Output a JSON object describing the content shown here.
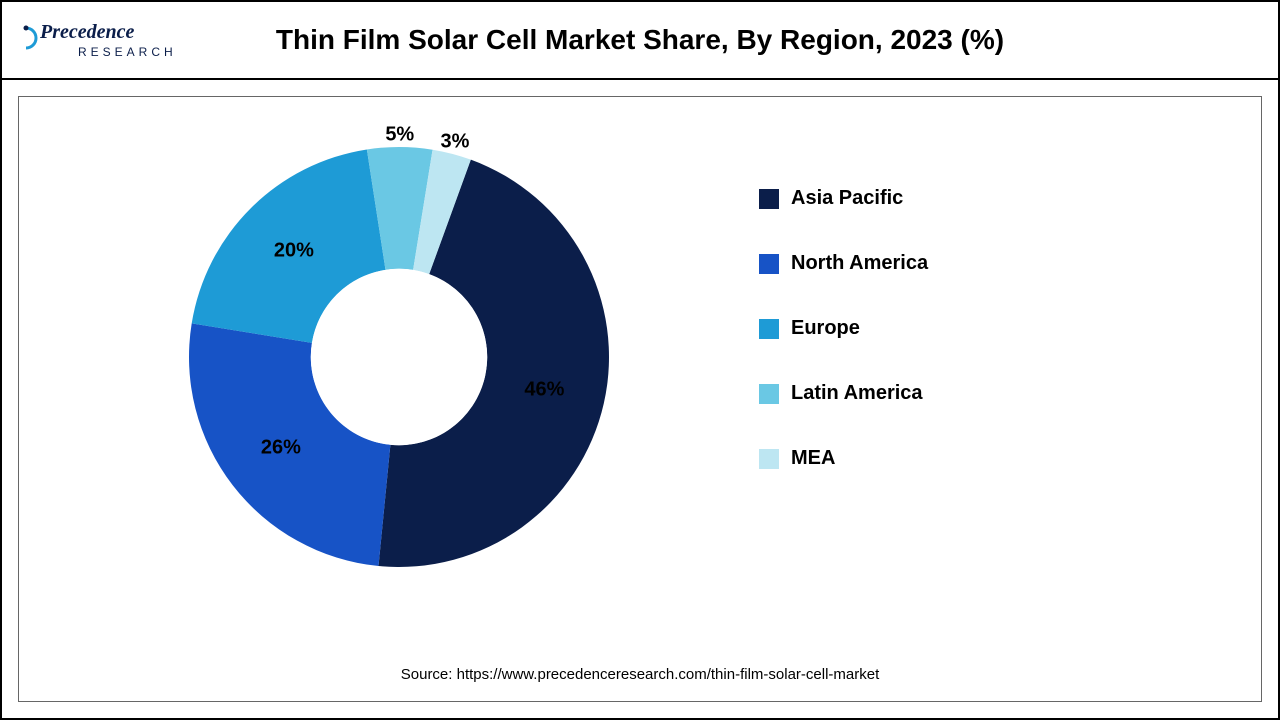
{
  "title": "Thin Film Solar Cell Market Share, By Region, 2023 (%)",
  "logo": {
    "top_text": "Precedence",
    "bottom_text": "RESEARCH",
    "accent_color": "#1e9bd6",
    "text_color": "#0b1e4a"
  },
  "chart": {
    "type": "donut",
    "background_color": "#ffffff",
    "inner_radius_ratio": 0.42,
    "outer_radius": 210,
    "start_angle_deg": 20,
    "direction": "clockwise",
    "label_fontsize": 20,
    "label_fontweight": 700,
    "label_color": "#000000",
    "slices": [
      {
        "name": "Asia Pacific",
        "value": 46,
        "color": "#0b1e4a",
        "label": "46%"
      },
      {
        "name": "North America",
        "value": 26,
        "color": "#1753c6",
        "label": "26%"
      },
      {
        "name": "Europe",
        "value": 20,
        "color": "#1e9bd6",
        "label": "20%"
      },
      {
        "name": "Latin America",
        "value": 5,
        "color": "#6ac8e4",
        "label": "5%"
      },
      {
        "name": "MEA",
        "value": 3,
        "color": "#bde6f2",
        "label": "3%"
      }
    ]
  },
  "legend": {
    "position": "right",
    "item_spacing": 42,
    "swatch_size": 20,
    "fontsize": 20,
    "fontweight": 700,
    "items": [
      {
        "label": "Asia Pacific",
        "color": "#0b1e4a"
      },
      {
        "label": "North America",
        "color": "#1753c6"
      },
      {
        "label": "Europe",
        "color": "#1e9bd6"
      },
      {
        "label": "Latin America",
        "color": "#6ac8e4"
      },
      {
        "label": "MEA",
        "color": "#bde6f2"
      }
    ]
  },
  "source": "Source: https://www.precedenceresearch.com/thin-film-solar-cell-market"
}
